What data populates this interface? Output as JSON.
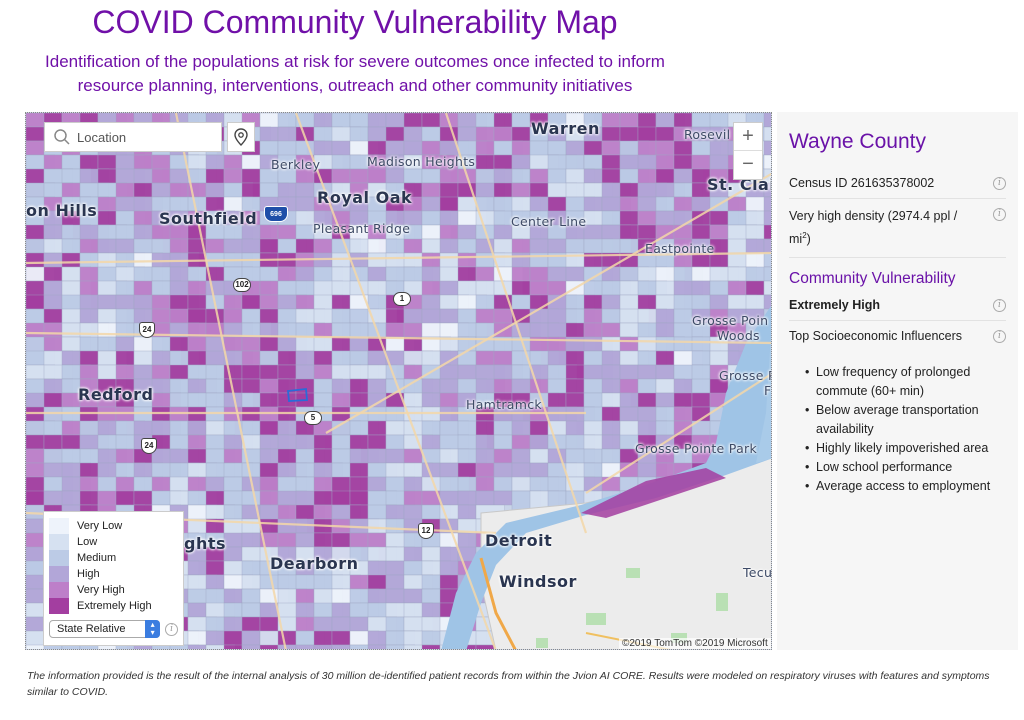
{
  "header": {
    "title": "COVID Community Vulnerability Map",
    "subtitle_line1": "Identification of the populations at risk for severe outcomes once infected to inform",
    "subtitle_line2": "resource planning, interventions, outreach and other community initiatives"
  },
  "map": {
    "search_placeholder": "Location",
    "zoom_in": "+",
    "zoom_out": "−",
    "copyright": "©2019 TomTom ©2019 Microsoft",
    "places": {
      "warren": "Warren",
      "roseville": "Rosevil",
      "berkley": "Berkley",
      "madison_heights": "Madison Heights",
      "royal_oak": "Royal Oak",
      "st_clair": "St. Clai",
      "farmington_hills": "on Hills",
      "southfield": "Southfield",
      "pleasant_ridge": "Pleasant Ridge",
      "center_line": "Center Line",
      "eastpointe": "Eastpointe",
      "grosse_pointe_woods_1": "Grosse Poin",
      "grosse_pointe_woods_2": "Woods",
      "grosse_pointe_farms": "Grosse P",
      "grosse_pointe_farms2": "F",
      "redford": "Redford",
      "hamtramck": "Hamtramck",
      "grosse_pointe_park": "Grosse Pointe Park",
      "dearborn_heights": "ghts",
      "detroit": "Detroit",
      "dearborn": "Dearborn",
      "windsor": "Windsor",
      "tecumseh": "Tecu"
    },
    "shields": {
      "i696": "696",
      "r102": "102",
      "r1": "1",
      "us24a": "24",
      "r5": "5",
      "us24b": "24",
      "us12": "12"
    }
  },
  "legend": {
    "items": [
      {
        "label": "Very Low",
        "color": "#eef3fb"
      },
      {
        "label": "Low",
        "color": "#d6e1f1"
      },
      {
        "label": "Medium",
        "color": "#bccbe6"
      },
      {
        "label": "High",
        "color": "#b2a6d8"
      },
      {
        "label": "Very High",
        "color": "#bd7fc9"
      },
      {
        "label": "Extremely High",
        "color": "#a33ea0"
      }
    ],
    "selector_value": "State Relative"
  },
  "panel": {
    "county": "Wayne County",
    "census_id": "Census ID 261635378002",
    "density_text": "Very high density (2974.4 ppl / mi",
    "density_sup": "2",
    "density_end": ")",
    "vulnerability_heading": "Community Vulnerability",
    "vulnerability_value": "Extremely High",
    "influencers_heading": "Top Socioeconomic Influencers",
    "influencers": [
      "Low frequency of prolonged commute (60+ min)",
      "Below average transportation availability",
      "Highly likely impoverished area",
      "Low school performance",
      "Average access to employment"
    ]
  },
  "footnote": "The information provided is the result of the internal analysis of 30 million de-identified patient records from within the Jvion AI CORE. Results were modeled on respiratory viruses with features and symptoms similar to COVID."
}
